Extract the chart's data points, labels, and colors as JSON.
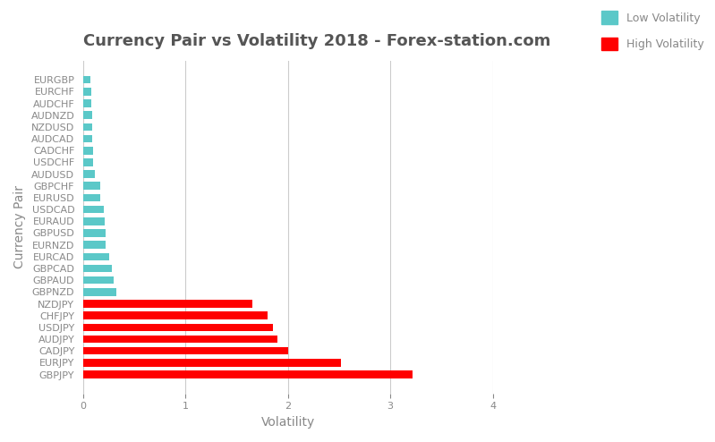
{
  "title": "Currency Pair vs Volatility 2018 - Forex-station.com",
  "xlabel": "Volatility",
  "ylabel": "Currency Pair",
  "xlim": [
    0,
    4
  ],
  "xticks": [
    0,
    1,
    2,
    3,
    4
  ],
  "background_color": "#ffffff",
  "grid_color": "#cccccc",
  "low_color": "#5bc8c8",
  "high_color": "#ff0000",
  "legend_low": "Low Volatility",
  "legend_high": "High Volatility",
  "categories": [
    "EURGBP",
    "EURCHF",
    "AUDCHF",
    "AUDNZD",
    "NZDUSD",
    "AUDCAD",
    "CADCHF",
    "USDCHF",
    "AUDUSD",
    "GBPCHF",
    "EURUSD",
    "USDCAD",
    "EURAUD",
    "GBPUSD",
    "EURNZD",
    "EURCAD",
    "GBPCAD",
    "GBPAUD",
    "GBPNZD",
    "NZDJPY",
    "CHFJPY",
    "USDJPY",
    "AUDJPY",
    "CADJPY",
    "EURJPY",
    "GBPJPY"
  ],
  "values": [
    0.07,
    0.08,
    0.08,
    0.09,
    0.09,
    0.09,
    0.1,
    0.1,
    0.11,
    0.17,
    0.17,
    0.2,
    0.21,
    0.22,
    0.22,
    0.25,
    0.28,
    0.3,
    0.32,
    1.65,
    1.8,
    1.85,
    1.9,
    2.0,
    2.52,
    3.22
  ],
  "colors": [
    "#5bc8c8",
    "#5bc8c8",
    "#5bc8c8",
    "#5bc8c8",
    "#5bc8c8",
    "#5bc8c8",
    "#5bc8c8",
    "#5bc8c8",
    "#5bc8c8",
    "#5bc8c8",
    "#5bc8c8",
    "#5bc8c8",
    "#5bc8c8",
    "#5bc8c8",
    "#5bc8c8",
    "#5bc8c8",
    "#5bc8c8",
    "#5bc8c8",
    "#5bc8c8",
    "#ff0000",
    "#ff0000",
    "#ff0000",
    "#ff0000",
    "#ff0000",
    "#ff0000",
    "#ff0000"
  ],
  "title_fontsize": 13,
  "axis_label_fontsize": 10,
  "tick_fontsize": 8,
  "bar_height": 0.65,
  "fig_facecolor": "#ffffff",
  "title_color": "#555555",
  "label_color": "#888888",
  "tick_color": "#888888"
}
